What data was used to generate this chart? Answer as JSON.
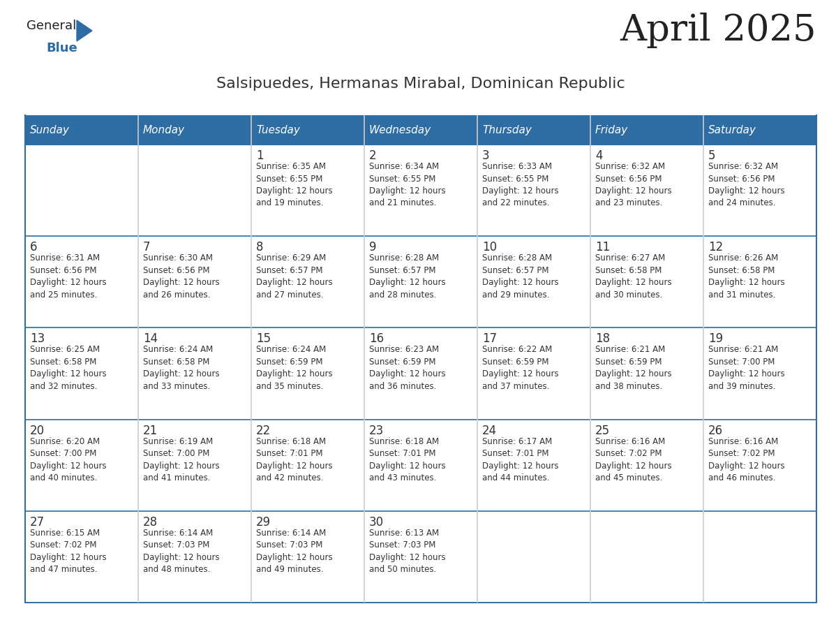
{
  "title": "April 2025",
  "subtitle": "Salsipuedes, Hermanas Mirabal, Dominican Republic",
  "header_bg": "#2E6DA4",
  "header_text": "#FFFFFF",
  "cell_bg": "#FFFFFF",
  "row_border_color": "#2E6DA4",
  "col_border_color": "#CCCCCC",
  "text_color": "#333333",
  "days_of_week": [
    "Sunday",
    "Monday",
    "Tuesday",
    "Wednesday",
    "Thursday",
    "Friday",
    "Saturday"
  ],
  "calendar": [
    [
      {
        "day": "",
        "info": ""
      },
      {
        "day": "",
        "info": ""
      },
      {
        "day": "1",
        "info": "Sunrise: 6:35 AM\nSunset: 6:55 PM\nDaylight: 12 hours\nand 19 minutes."
      },
      {
        "day": "2",
        "info": "Sunrise: 6:34 AM\nSunset: 6:55 PM\nDaylight: 12 hours\nand 21 minutes."
      },
      {
        "day": "3",
        "info": "Sunrise: 6:33 AM\nSunset: 6:55 PM\nDaylight: 12 hours\nand 22 minutes."
      },
      {
        "day": "4",
        "info": "Sunrise: 6:32 AM\nSunset: 6:56 PM\nDaylight: 12 hours\nand 23 minutes."
      },
      {
        "day": "5",
        "info": "Sunrise: 6:32 AM\nSunset: 6:56 PM\nDaylight: 12 hours\nand 24 minutes."
      }
    ],
    [
      {
        "day": "6",
        "info": "Sunrise: 6:31 AM\nSunset: 6:56 PM\nDaylight: 12 hours\nand 25 minutes."
      },
      {
        "day": "7",
        "info": "Sunrise: 6:30 AM\nSunset: 6:56 PM\nDaylight: 12 hours\nand 26 minutes."
      },
      {
        "day": "8",
        "info": "Sunrise: 6:29 AM\nSunset: 6:57 PM\nDaylight: 12 hours\nand 27 minutes."
      },
      {
        "day": "9",
        "info": "Sunrise: 6:28 AM\nSunset: 6:57 PM\nDaylight: 12 hours\nand 28 minutes."
      },
      {
        "day": "10",
        "info": "Sunrise: 6:28 AM\nSunset: 6:57 PM\nDaylight: 12 hours\nand 29 minutes."
      },
      {
        "day": "11",
        "info": "Sunrise: 6:27 AM\nSunset: 6:58 PM\nDaylight: 12 hours\nand 30 minutes."
      },
      {
        "day": "12",
        "info": "Sunrise: 6:26 AM\nSunset: 6:58 PM\nDaylight: 12 hours\nand 31 minutes."
      }
    ],
    [
      {
        "day": "13",
        "info": "Sunrise: 6:25 AM\nSunset: 6:58 PM\nDaylight: 12 hours\nand 32 minutes."
      },
      {
        "day": "14",
        "info": "Sunrise: 6:24 AM\nSunset: 6:58 PM\nDaylight: 12 hours\nand 33 minutes."
      },
      {
        "day": "15",
        "info": "Sunrise: 6:24 AM\nSunset: 6:59 PM\nDaylight: 12 hours\nand 35 minutes."
      },
      {
        "day": "16",
        "info": "Sunrise: 6:23 AM\nSunset: 6:59 PM\nDaylight: 12 hours\nand 36 minutes."
      },
      {
        "day": "17",
        "info": "Sunrise: 6:22 AM\nSunset: 6:59 PM\nDaylight: 12 hours\nand 37 minutes."
      },
      {
        "day": "18",
        "info": "Sunrise: 6:21 AM\nSunset: 6:59 PM\nDaylight: 12 hours\nand 38 minutes."
      },
      {
        "day": "19",
        "info": "Sunrise: 6:21 AM\nSunset: 7:00 PM\nDaylight: 12 hours\nand 39 minutes."
      }
    ],
    [
      {
        "day": "20",
        "info": "Sunrise: 6:20 AM\nSunset: 7:00 PM\nDaylight: 12 hours\nand 40 minutes."
      },
      {
        "day": "21",
        "info": "Sunrise: 6:19 AM\nSunset: 7:00 PM\nDaylight: 12 hours\nand 41 minutes."
      },
      {
        "day": "22",
        "info": "Sunrise: 6:18 AM\nSunset: 7:01 PM\nDaylight: 12 hours\nand 42 minutes."
      },
      {
        "day": "23",
        "info": "Sunrise: 6:18 AM\nSunset: 7:01 PM\nDaylight: 12 hours\nand 43 minutes."
      },
      {
        "day": "24",
        "info": "Sunrise: 6:17 AM\nSunset: 7:01 PM\nDaylight: 12 hours\nand 44 minutes."
      },
      {
        "day": "25",
        "info": "Sunrise: 6:16 AM\nSunset: 7:02 PM\nDaylight: 12 hours\nand 45 minutes."
      },
      {
        "day": "26",
        "info": "Sunrise: 6:16 AM\nSunset: 7:02 PM\nDaylight: 12 hours\nand 46 minutes."
      }
    ],
    [
      {
        "day": "27",
        "info": "Sunrise: 6:15 AM\nSunset: 7:02 PM\nDaylight: 12 hours\nand 47 minutes."
      },
      {
        "day": "28",
        "info": "Sunrise: 6:14 AM\nSunset: 7:03 PM\nDaylight: 12 hours\nand 48 minutes."
      },
      {
        "day": "29",
        "info": "Sunrise: 6:14 AM\nSunset: 7:03 PM\nDaylight: 12 hours\nand 49 minutes."
      },
      {
        "day": "30",
        "info": "Sunrise: 6:13 AM\nSunset: 7:03 PM\nDaylight: 12 hours\nand 50 minutes."
      },
      {
        "day": "",
        "info": ""
      },
      {
        "day": "",
        "info": ""
      },
      {
        "day": "",
        "info": ""
      }
    ]
  ],
  "logo_text1": "General",
  "logo_text2": "Blue",
  "logo_color1": "#222222",
  "logo_color2": "#2E6DA4",
  "title_fontsize": 38,
  "subtitle_fontsize": 16,
  "header_fontsize": 11,
  "day_num_fontsize": 12,
  "info_fontsize": 8.5
}
